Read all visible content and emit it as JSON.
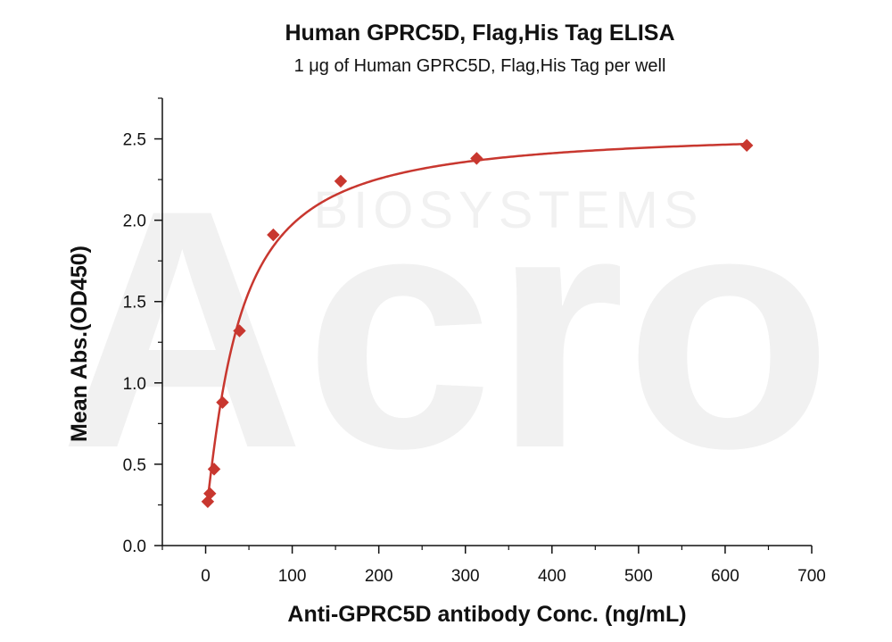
{
  "chart_data": {
    "type": "scatter",
    "title": "Human GPRC5D, Flag,His Tag ELISA",
    "subtitle": "1 μg of Human GPRC5D, Flag,His Tag per well",
    "xlabel": "Anti-GPRC5D antibody Conc. (ng/mL)",
    "ylabel": "Mean Abs.(OD450)",
    "xlim": [
      -50,
      700
    ],
    "ylim": [
      0,
      2.75
    ],
    "xticks": [
      0,
      100,
      200,
      300,
      400,
      500,
      600,
      700
    ],
    "yticks": [
      0.0,
      0.5,
      1.0,
      1.5,
      2.0,
      2.5
    ],
    "xtick_labels": [
      "0",
      "100",
      "200",
      "300",
      "400",
      "500",
      "600",
      "700"
    ],
    "ytick_labels": [
      "0.0",
      "0.5",
      "1.0",
      "1.5",
      "2.0",
      "2.5"
    ],
    "grid": false,
    "series": [
      {
        "color": "#c8372f",
        "marker": "diamond",
        "points": [
          {
            "x": 2.44,
            "y": 0.27
          },
          {
            "x": 4.88,
            "y": 0.32
          },
          {
            "x": 9.77,
            "y": 0.47
          },
          {
            "x": 19.5,
            "y": 0.88
          },
          {
            "x": 39.1,
            "y": 1.32
          },
          {
            "x": 78.1,
            "y": 1.91
          },
          {
            "x": 156,
            "y": 2.24
          },
          {
            "x": 313,
            "y": 2.38
          },
          {
            "x": 625,
            "y": 2.46
          }
        ],
        "fit": "four-parameter-logistic"
      }
    ],
    "watermark_text": "BIOSYSTEMS",
    "watermark_logo": "Acro"
  }
}
